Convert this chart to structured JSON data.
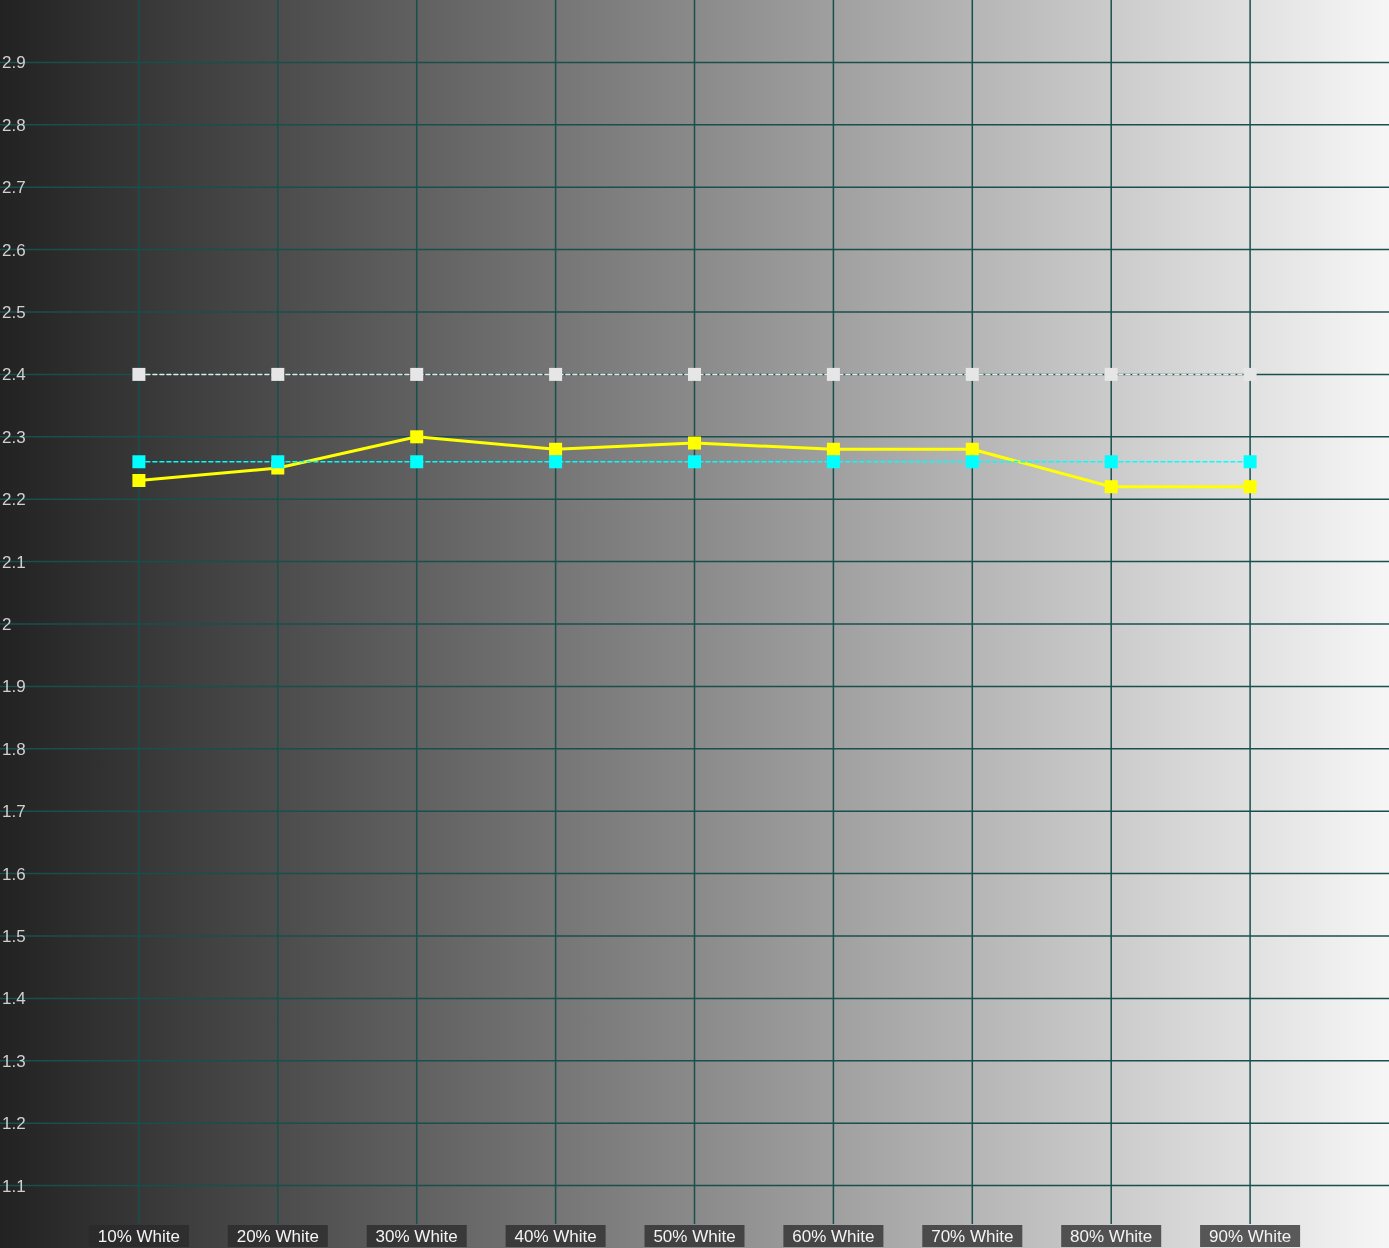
{
  "chart_data": {
    "type": "line",
    "x": [
      10,
      20,
      30,
      40,
      50,
      60,
      70,
      80,
      90
    ],
    "xlim": [
      0,
      100
    ],
    "xticks": [
      {
        "value": 10,
        "label": "10% White"
      },
      {
        "value": 20,
        "label": "20% White"
      },
      {
        "value": 30,
        "label": "30% White"
      },
      {
        "value": 40,
        "label": "40% White"
      },
      {
        "value": 50,
        "label": "50% White"
      },
      {
        "value": 60,
        "label": "60% White"
      },
      {
        "value": 70,
        "label": "70% White"
      },
      {
        "value": 80,
        "label": "80% White"
      },
      {
        "value": 90,
        "label": "90% White"
      }
    ],
    "ylim": [
      1.0,
      3.0
    ],
    "yticks": [
      1.1,
      1.2,
      1.3,
      1.4,
      1.5,
      1.6,
      1.7,
      1.8,
      1.9,
      2,
      2.1,
      2.2,
      2.3,
      2.4,
      2.5,
      2.6,
      2.7,
      2.8,
      2.9
    ],
    "grid": true,
    "marker": "square",
    "series": [
      {
        "color": "#e6e6e6",
        "line_style": "dashed",
        "values": [
          2.4,
          2.4,
          2.4,
          2.4,
          2.4,
          2.4,
          2.4,
          2.4,
          2.4
        ]
      },
      {
        "color": "#00ffff",
        "line_style": "dashed",
        "values": [
          2.26,
          2.26,
          2.26,
          2.26,
          2.26,
          2.26,
          2.26,
          2.26,
          2.26
        ]
      },
      {
        "color": "#ffff00",
        "line_style": "solid",
        "values": [
          2.23,
          2.25,
          2.3,
          2.28,
          2.29,
          2.28,
          2.28,
          2.22,
          2.22
        ]
      }
    ]
  }
}
